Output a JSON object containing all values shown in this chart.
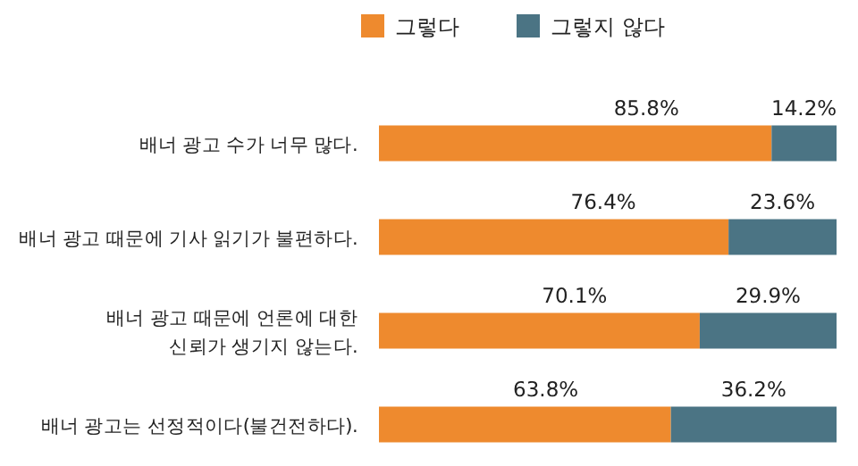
{
  "chart_data": {
    "type": "bar",
    "orientation": "horizontal",
    "stacked": true,
    "legend": "top",
    "categories": [
      "배너 광고 수가 너무 많다.",
      "배너 광고 때문에 기사 읽기가 불편하다.",
      "배너 광고 때문에 언론에 대한\n신뢰가 생기지 않는다.",
      "배너 광고는 선정적이다(불건전하다)."
    ],
    "series": [
      {
        "name": "그렇다",
        "color": "#ee8a2e",
        "values": [
          85.8,
          76.4,
          70.1,
          63.8
        ],
        "value_labels": [
          "85.8%",
          "76.4%",
          "70.1%",
          "63.8%"
        ]
      },
      {
        "name": "그렇지 않다",
        "color": "#4b7484",
        "values": [
          14.2,
          23.6,
          29.9,
          36.2
        ],
        "value_labels": [
          "14.2%",
          "23.6%",
          "29.9%",
          "36.2%"
        ]
      }
    ]
  }
}
